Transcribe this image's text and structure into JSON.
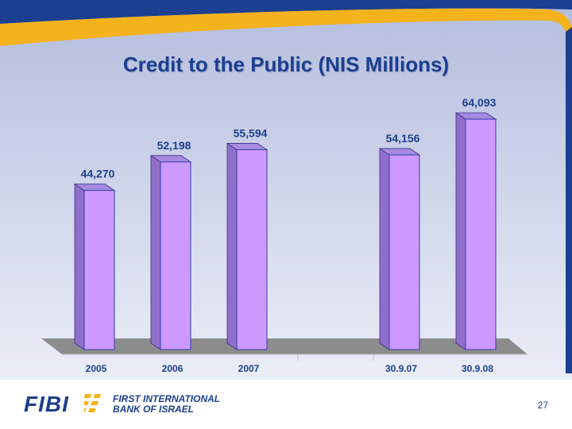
{
  "slide": {
    "title": "Credit to the Public (NIS Millions)",
    "page_number": "27"
  },
  "logo": {
    "wordmark": "FIBI",
    "name_line1": "FIRST INTERNATIONAL",
    "name_line2": "BANK OF ISRAEL"
  },
  "colors": {
    "navy": "#1c3f8f",
    "accent": "#f4b21c",
    "bar_front": "#cc99ff",
    "bar_side": "#8f6fc9",
    "floor": "#8c8c8c"
  },
  "chart_data": {
    "type": "bar",
    "title": "Credit to the Public (NIS Millions)",
    "groups": [
      {
        "categories": [
          "2005",
          "2006",
          "2007"
        ],
        "values": [
          44270,
          52198,
          55594
        ],
        "labels": [
          "44,270",
          "52,198",
          "55,594"
        ]
      },
      {
        "categories": [
          "30.9.07",
          "30.9.08"
        ],
        "values": [
          54156,
          64093
        ],
        "labels": [
          "54,156",
          "64,093"
        ]
      }
    ],
    "grid": false,
    "legend": "none"
  }
}
